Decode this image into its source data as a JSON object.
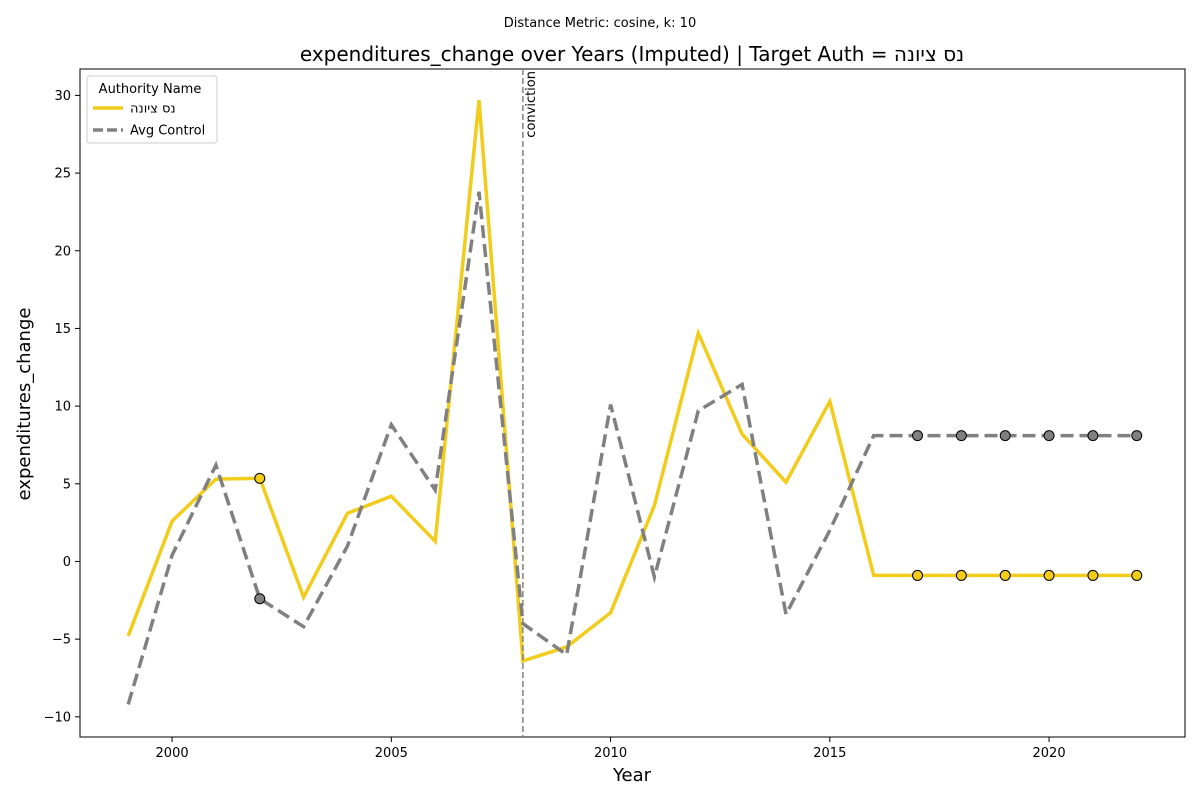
{
  "chart_data": {
    "type": "line",
    "subtitle": "Distance Metric: cosine, k: 10",
    "title": "expenditures_change over Years (Imputed) | Target Auth = נס ציונה",
    "xlabel": "Year",
    "ylabel": "expenditures_change",
    "xlim": [
      1997.9,
      2023.1
    ],
    "ylim": [
      -11.3,
      31.7
    ],
    "xticks": [
      2000,
      2005,
      2010,
      2015,
      2020
    ],
    "yticks": [
      -10,
      -5,
      0,
      5,
      10,
      15,
      20,
      25,
      30
    ],
    "grid": false,
    "legend": {
      "title": "Authority Name",
      "placement": "top-left"
    },
    "x": [
      1999,
      2000,
      2001,
      2002,
      2003,
      2004,
      2005,
      2006,
      2007,
      2008,
      2009,
      2010,
      2011,
      2012,
      2013,
      2014,
      2015,
      2016,
      2017,
      2018,
      2019,
      2020,
      2021,
      2022
    ],
    "series": [
      {
        "name": "נס ציונה",
        "style": "solid",
        "color": "#f2cc1b",
        "values": [
          -4.8,
          2.6,
          5.3,
          5.35,
          -2.3,
          3.1,
          4.2,
          1.3,
          29.7,
          -6.4,
          -5.5,
          -3.3,
          3.6,
          14.7,
          8.2,
          5.1,
          10.3,
          -0.9,
          -0.9,
          -0.9,
          -0.9,
          -0.9,
          -0.9,
          -0.9
        ],
        "imputed_years": [
          2002,
          2017,
          2018,
          2019,
          2020,
          2021,
          2022
        ]
      },
      {
        "name": "Avg Control",
        "style": "dashed",
        "color": "#808080",
        "values": [
          -9.2,
          0.4,
          6.2,
          -2.4,
          -4.2,
          1.0,
          8.8,
          4.6,
          23.8,
          -4.0,
          -6.0,
          10.1,
          -1.0,
          9.7,
          11.4,
          -3.4,
          2.0,
          8.1,
          8.1,
          8.1,
          8.1,
          8.1,
          8.1,
          8.1
        ],
        "imputed_years": [
          2002,
          2017,
          2018,
          2019,
          2020,
          2021,
          2022
        ]
      }
    ],
    "vline": {
      "x": 2008,
      "label": "conviction",
      "color": "#808080"
    }
  }
}
